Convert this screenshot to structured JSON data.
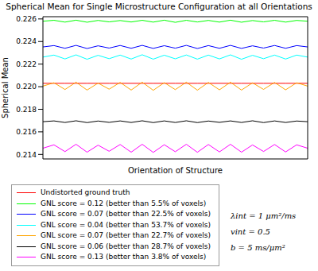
{
  "chart_data": {
    "type": "line",
    "title": "Spherical Mean for Single Microstructure Configuration at all Orientations",
    "x_label": "Orientation of Structure",
    "y_label": "Spherical Mean",
    "x": [
      0,
      1,
      2,
      3,
      4,
      5,
      6,
      7,
      8,
      9,
      10,
      11,
      12,
      13,
      14,
      15,
      16,
      17,
      18,
      19,
      20,
      21,
      22,
      23,
      24
    ],
    "xlim": [
      0,
      24
    ],
    "ylim": [
      0.2136,
      0.2262
    ],
    "yticks": [
      0.214,
      0.216,
      0.218,
      {
        "value": 0.22,
        "label": "0.220"
      },
      0.222,
      0.224,
      0.226
    ],
    "tick_labels": "y",
    "grid": false,
    "legend": "bottom",
    "annotations": [
      "λint = 1 μm²/ms",
      "vint = 0.5",
      "b = 5 ms/μm²"
    ],
    "series": [
      {
        "name": "Undistorted ground truth",
        "color": "#ff0000",
        "values": [
          0.2203,
          0.2203,
          0.2203,
          0.2203,
          0.2203,
          0.2203,
          0.2203,
          0.2203,
          0.2203,
          0.2203,
          0.2203,
          0.2203,
          0.2203,
          0.2203,
          0.2203,
          0.2203,
          0.2203,
          0.2203,
          0.2203,
          0.2203,
          0.2203,
          0.2203,
          0.2203,
          0.2203,
          0.2203
        ]
      },
      {
        "name": "GNL score = 0.12 (better than 5.5% of voxels)",
        "color": "#00ff00",
        "values": [
          0.2258,
          0.22588,
          0.22572,
          0.22589,
          0.22571,
          0.22587,
          0.22574,
          0.22586,
          0.22573,
          0.22588,
          0.22572,
          0.22589,
          0.2257,
          0.22588,
          0.22573,
          0.22587,
          0.22572,
          0.22589,
          0.22571,
          0.22586,
          0.22574,
          0.22588,
          0.22572,
          0.22587,
          0.2258
        ]
      },
      {
        "name": "GNL score = 0.07 (better than 22.5% of voxels)",
        "color": "#0000ff",
        "values": [
          0.22352,
          0.22364,
          0.2234,
          0.22366,
          0.22338,
          0.22362,
          0.22342,
          0.22365,
          0.2234,
          0.22366,
          0.22339,
          0.22363,
          0.22341,
          0.22366,
          0.22338,
          0.22364,
          0.2234,
          0.22366,
          0.22339,
          0.22362,
          0.22342,
          0.22365,
          0.2234,
          0.22364,
          0.22352
        ]
      },
      {
        "name": "GNL score = 0.04 (better than 53.7% of voxels)",
        "color": "#00ffff",
        "values": [
          0.22262,
          0.2228,
          0.22246,
          0.22282,
          0.22243,
          0.22278,
          0.22248,
          0.2228,
          0.22245,
          0.22283,
          0.22244,
          0.22279,
          0.22247,
          0.22281,
          0.22244,
          0.2228,
          0.22246,
          0.22282,
          0.22243,
          0.22278,
          0.22248,
          0.2228,
          0.22245,
          0.2228,
          0.22262
        ]
      },
      {
        "name": "GNL score = 0.07 (better than 22.7% of voxels)",
        "color": "#ffa500",
        "values": [
          0.22005,
          0.22035,
          0.21975,
          0.2204,
          0.2197,
          0.22032,
          0.21978,
          0.22038,
          0.2197,
          0.2204,
          0.21968,
          0.22036,
          0.21974,
          0.2204,
          0.21969,
          0.22038,
          0.21972,
          0.2204,
          0.2197,
          0.22034,
          0.21976,
          0.22038,
          0.21972,
          0.22035,
          0.22005
        ]
      },
      {
        "name": "GNL score = 0.06 (better than 28.7% of voxels)",
        "color": "#000000",
        "values": [
          0.2169,
          0.21697,
          0.21683,
          0.21698,
          0.21682,
          0.21696,
          0.21684,
          0.21697,
          0.21683,
          0.21698,
          0.21682,
          0.21697,
          0.21683,
          0.21698,
          0.21682,
          0.21696,
          0.21684,
          0.21697,
          0.21683,
          0.21698,
          0.21682,
          0.21697,
          0.21683,
          0.21696,
          0.2169
        ]
      },
      {
        "name": "GNL score = 0.13 (better than 3.8% of voxels)",
        "color": "#ff00ff",
        "values": [
          0.21455,
          0.21485,
          0.21425,
          0.2149,
          0.2142,
          0.21482,
          0.21428,
          0.21488,
          0.2142,
          0.2149,
          0.21418,
          0.21486,
          0.21424,
          0.2149,
          0.21419,
          0.21488,
          0.21422,
          0.2149,
          0.2142,
          0.21484,
          0.21426,
          0.21488,
          0.21422,
          0.21485,
          0.21455
        ]
      }
    ]
  }
}
